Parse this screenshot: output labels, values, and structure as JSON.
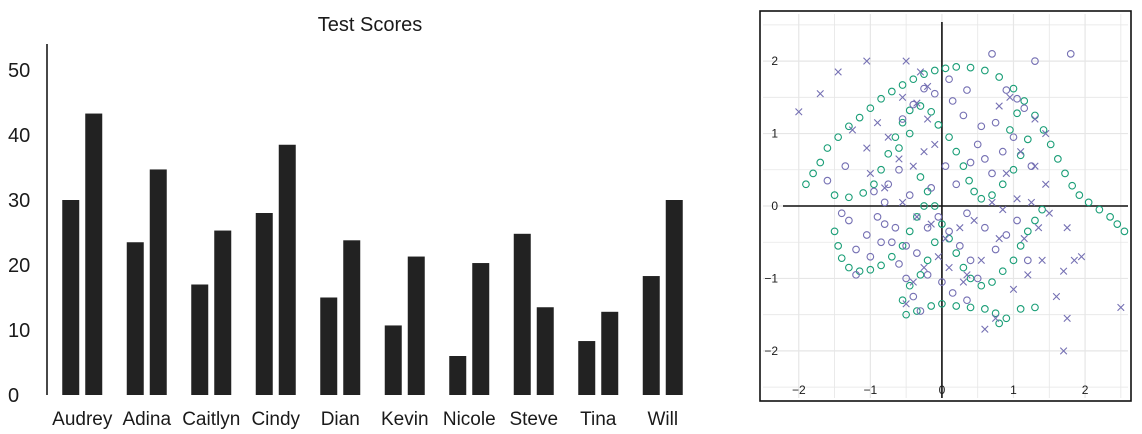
{
  "chart_data": [
    {
      "type": "bar",
      "title": "Test Scores",
      "categories": [
        "Audrey",
        "Adina",
        "Caitlyn",
        "Cindy",
        "Dian",
        "Kevin",
        "Nicole",
        "Steve",
        "Tina",
        "Will"
      ],
      "series": [
        {
          "values": [
            30,
            23.5,
            17,
            28,
            15,
            10.7,
            6,
            24.8,
            8.3,
            18.3
          ]
        },
        {
          "values": [
            43.3,
            34.7,
            25.3,
            38.5,
            23.8,
            21.3,
            20.3,
            13.5,
            12.8,
            30
          ]
        }
      ],
      "ylim": [
        0,
        54
      ],
      "yticks": [
        0,
        10,
        20,
        30,
        40,
        50
      ],
      "grid": false,
      "colors": {
        "bar": "#222222",
        "axis": "#1a1a1a",
        "title": "#666666"
      }
    },
    {
      "type": "scatter",
      "xlim": [
        -2.5,
        2.6
      ],
      "ylim": [
        -2.65,
        2.65
      ],
      "xticks": [
        -2,
        -1,
        0,
        1,
        2
      ],
      "yticks": [
        -2,
        -1,
        0,
        1,
        2
      ],
      "xtick_labels": [
        "−2",
        "−1",
        "0",
        "1",
        "2"
      ],
      "ytick_labels": [
        "−2",
        "−1",
        "0",
        "1",
        "2"
      ],
      "grid": true,
      "colors": {
        "ring": "#1a9e77",
        "circle": "#7570b3",
        "cross": "#7570b3",
        "grid": "#e6e6e6",
        "frame": "#111111"
      },
      "series": [
        {
          "marker": "circle",
          "color": "#1a9e77",
          "points": [
            [
              -1.9,
              0.3
            ],
            [
              -1.8,
              0.45
            ],
            [
              -1.7,
              0.6
            ],
            [
              -1.6,
              0.8
            ],
            [
              -1.45,
              0.95
            ],
            [
              -1.3,
              1.1
            ],
            [
              -1.15,
              1.22
            ],
            [
              -1.0,
              1.35
            ],
            [
              -0.85,
              1.48
            ],
            [
              -0.7,
              1.58
            ],
            [
              -0.55,
              1.67
            ],
            [
              -0.4,
              1.75
            ],
            [
              -0.25,
              1.82
            ],
            [
              -0.1,
              1.87
            ],
            [
              0.05,
              1.9
            ],
            [
              0.2,
              1.92
            ],
            [
              0.4,
              1.91
            ],
            [
              0.6,
              1.87
            ],
            [
              0.8,
              1.78
            ],
            [
              1.0,
              1.62
            ],
            [
              1.15,
              1.45
            ],
            [
              1.3,
              1.25
            ],
            [
              1.42,
              1.05
            ],
            [
              1.52,
              0.85
            ],
            [
              1.62,
              0.65
            ],
            [
              1.72,
              0.45
            ],
            [
              1.82,
              0.28
            ],
            [
              1.92,
              0.15
            ],
            [
              2.05,
              0.05
            ],
            [
              2.2,
              -0.05
            ],
            [
              2.35,
              -0.15
            ],
            [
              2.45,
              -0.25
            ],
            [
              2.55,
              -0.35
            ],
            [
              -1.5,
              0.15
            ],
            [
              -1.3,
              0.12
            ],
            [
              -1.1,
              0.18
            ],
            [
              -0.95,
              0.3
            ],
            [
              -0.85,
              0.5
            ],
            [
              -0.75,
              0.72
            ],
            [
              -0.65,
              0.95
            ],
            [
              -0.55,
              1.15
            ],
            [
              -0.45,
              1.32
            ],
            [
              -0.3,
              1.38
            ],
            [
              -0.15,
              1.3
            ],
            [
              -0.05,
              1.12
            ],
            [
              0.1,
              0.95
            ],
            [
              0.2,
              0.75
            ],
            [
              0.3,
              0.55
            ],
            [
              0.38,
              0.35
            ],
            [
              0.45,
              0.2
            ],
            [
              0.55,
              0.1
            ],
            [
              0.7,
              0.15
            ],
            [
              0.85,
              0.3
            ],
            [
              1.0,
              0.5
            ],
            [
              1.1,
              0.7
            ],
            [
              1.2,
              0.92
            ],
            [
              -0.3,
              0.4
            ],
            [
              -0.2,
              0.2
            ],
            [
              -0.1,
              0.0
            ],
            [
              0.0,
              -0.25
            ],
            [
              0.1,
              -0.45
            ],
            [
              0.2,
              -0.65
            ],
            [
              0.3,
              -0.85
            ],
            [
              0.4,
              -1.0
            ],
            [
              0.55,
              -1.1
            ],
            [
              0.7,
              -1.05
            ],
            [
              0.85,
              -0.9
            ],
            [
              1.0,
              -0.75
            ],
            [
              1.1,
              -0.55
            ],
            [
              1.2,
              -0.35
            ],
            [
              1.3,
              -0.2
            ],
            [
              1.4,
              -0.05
            ],
            [
              -1.5,
              -0.35
            ],
            [
              -1.45,
              -0.55
            ],
            [
              -1.4,
              -0.72
            ],
            [
              -1.3,
              -0.85
            ],
            [
              -1.15,
              -0.9
            ],
            [
              -1.0,
              -0.88
            ],
            [
              -0.85,
              -0.82
            ],
            [
              -0.7,
              -0.7
            ],
            [
              -0.55,
              -0.55
            ],
            [
              -0.45,
              -0.35
            ],
            [
              -0.35,
              -0.15
            ],
            [
              -0.25,
              0.0
            ],
            [
              -0.1,
              -0.5
            ],
            [
              -0.2,
              -0.75
            ],
            [
              -0.3,
              -0.95
            ],
            [
              -0.45,
              -1.1
            ],
            [
              -0.55,
              -1.3
            ],
            [
              -0.5,
              -1.5
            ],
            [
              -0.35,
              -1.45
            ],
            [
              -0.15,
              -1.38
            ],
            [
              0.0,
              -1.35
            ],
            [
              0.2,
              -1.38
            ],
            [
              0.4,
              -1.4
            ],
            [
              0.6,
              -1.42
            ],
            [
              0.75,
              -1.48
            ],
            [
              0.8,
              -1.62
            ],
            [
              0.9,
              -1.55
            ],
            [
              1.1,
              -1.42
            ],
            [
              1.3,
              -1.4
            ],
            [
              -0.45,
              1.0
            ],
            [
              -0.6,
              0.8
            ],
            [
              0.95,
              1.05
            ],
            [
              1.05,
              1.28
            ]
          ]
        },
        {
          "marker": "circle",
          "color": "#7570b3",
          "points": [
            [
              -1.6,
              0.35
            ],
            [
              -1.35,
              0.55
            ],
            [
              -0.95,
              0.2
            ],
            [
              -0.8,
              -0.25
            ],
            [
              -0.7,
              -0.5
            ],
            [
              -0.6,
              -0.8
            ],
            [
              -0.5,
              -1.0
            ],
            [
              -0.4,
              -1.25
            ],
            [
              -0.3,
              -1.45
            ],
            [
              -0.2,
              -0.3
            ],
            [
              -0.05,
              -0.15
            ],
            [
              0.1,
              -0.35
            ],
            [
              0.25,
              -0.55
            ],
            [
              0.4,
              -0.75
            ],
            [
              0.5,
              0.85
            ],
            [
              0.6,
              0.65
            ],
            [
              0.7,
              0.45
            ],
            [
              0.85,
              0.75
            ],
            [
              1.0,
              0.95
            ],
            [
              1.15,
              1.35
            ],
            [
              1.25,
              0.55
            ],
            [
              0.75,
              1.15
            ],
            [
              0.9,
              1.6
            ],
            [
              1.05,
              1.48
            ],
            [
              0.3,
              1.25
            ],
            [
              0.15,
              1.45
            ],
            [
              -0.1,
              1.55
            ],
            [
              -0.25,
              1.62
            ],
            [
              0.05,
              0.55
            ],
            [
              -0.4,
              1.4
            ],
            [
              -0.55,
              1.2
            ],
            [
              0.7,
              2.1
            ],
            [
              1.3,
              2.0
            ],
            [
              1.8,
              2.1
            ],
            [
              0.35,
              -0.1
            ],
            [
              0.6,
              -0.3
            ],
            [
              0.75,
              -0.6
            ],
            [
              0.9,
              -0.4
            ],
            [
              1.05,
              -0.2
            ],
            [
              1.2,
              -0.75
            ],
            [
              -1.2,
              -0.6
            ],
            [
              -1.05,
              -0.4
            ],
            [
              -0.9,
              -0.15
            ],
            [
              -0.8,
              0.05
            ],
            [
              -0.65,
              -0.3
            ],
            [
              -0.5,
              -0.55
            ],
            [
              -0.35,
              -0.65
            ],
            [
              -0.2,
              -0.95
            ],
            [
              0.0,
              -1.05
            ],
            [
              0.15,
              -1.2
            ],
            [
              0.35,
              -1.3
            ],
            [
              0.5,
              -1.0
            ],
            [
              -1.3,
              -0.2
            ],
            [
              -1.4,
              -0.1
            ],
            [
              -1.2,
              -0.95
            ],
            [
              -1.0,
              -0.7
            ],
            [
              -0.85,
              -0.5
            ],
            [
              -0.75,
              0.3
            ],
            [
              -0.6,
              0.5
            ],
            [
              -0.45,
              0.15
            ],
            [
              -0.15,
              0.25
            ],
            [
              0.2,
              0.3
            ],
            [
              0.4,
              0.6
            ],
            [
              0.55,
              1.1
            ],
            [
              0.35,
              1.6
            ],
            [
              0.1,
              1.75
            ]
          ]
        },
        {
          "marker": "cross",
          "color": "#7570b3",
          "points": [
            [
              -2.0,
              1.3
            ],
            [
              -1.7,
              1.55
            ],
            [
              -1.45,
              1.85
            ],
            [
              -1.05,
              2.0
            ],
            [
              -0.5,
              2.0
            ],
            [
              -0.3,
              1.85
            ],
            [
              -0.2,
              1.65
            ],
            [
              -1.25,
              1.05
            ],
            [
              -1.05,
              0.8
            ],
            [
              -0.9,
              1.15
            ],
            [
              -0.75,
              0.95
            ],
            [
              -0.6,
              0.65
            ],
            [
              -0.4,
              0.55
            ],
            [
              -0.25,
              0.75
            ],
            [
              -0.1,
              0.85
            ],
            [
              -0.2,
              1.2
            ],
            [
              -0.35,
              1.42
            ],
            [
              -0.55,
              1.5
            ],
            [
              -1.0,
              0.45
            ],
            [
              -0.8,
              0.25
            ],
            [
              -0.55,
              0.05
            ],
            [
              -0.35,
              -0.15
            ],
            [
              -0.15,
              -0.25
            ],
            [
              0.05,
              -0.45
            ],
            [
              0.25,
              -0.3
            ],
            [
              0.45,
              -0.2
            ],
            [
              0.7,
              0.05
            ],
            [
              0.85,
              -0.05
            ],
            [
              1.05,
              0.1
            ],
            [
              1.25,
              0.05
            ],
            [
              1.5,
              -0.1
            ],
            [
              1.75,
              -0.3
            ],
            [
              1.85,
              -0.75
            ],
            [
              1.95,
              -0.7
            ],
            [
              1.7,
              -0.9
            ],
            [
              1.6,
              -1.25
            ],
            [
              1.75,
              -1.55
            ],
            [
              1.7,
              -2.0
            ],
            [
              2.5,
              -1.4
            ],
            [
              1.4,
              -0.75
            ],
            [
              1.2,
              -0.95
            ],
            [
              1.0,
              -1.15
            ],
            [
              0.75,
              -1.55
            ],
            [
              0.6,
              -1.7
            ],
            [
              0.3,
              -1.05
            ],
            [
              0.1,
              -0.85
            ],
            [
              -0.05,
              -0.7
            ],
            [
              -0.25,
              -0.85
            ],
            [
              -0.4,
              -1.05
            ],
            [
              -0.5,
              -1.35
            ],
            [
              0.35,
              -0.95
            ],
            [
              0.55,
              -0.75
            ],
            [
              0.8,
              -0.45
            ],
            [
              1.15,
              -0.45
            ],
            [
              1.35,
              -0.3
            ],
            [
              1.45,
              0.3
            ],
            [
              1.3,
              0.55
            ],
            [
              1.1,
              0.75
            ],
            [
              0.9,
              0.45
            ],
            [
              1.45,
              1.0
            ],
            [
              1.3,
              1.2
            ],
            [
              0.95,
              1.5
            ],
            [
              0.8,
              1.38
            ]
          ]
        }
      ]
    }
  ]
}
